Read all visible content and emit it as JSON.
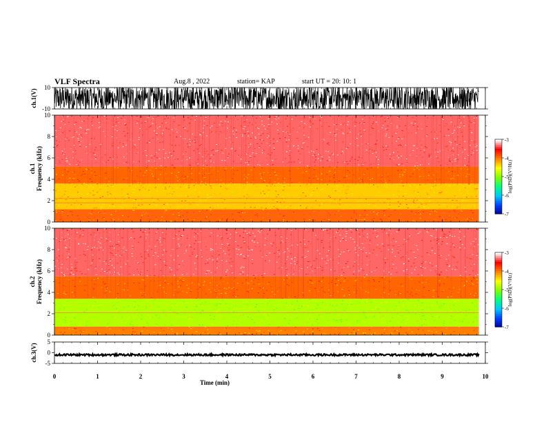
{
  "header": {
    "title": "VLF Spectra",
    "date": "Aug.8 , 2022",
    "station": "station= KAP",
    "start_ut": "start UT = 20: 10: 1"
  },
  "chart_data": [
    {
      "type": "line",
      "panel": "waveform-ch1",
      "ylabel": "ch.1(V)",
      "ylim": [
        -10,
        10
      ],
      "yticks": [
        "10",
        "-10"
      ],
      "xlim": [
        0,
        10
      ],
      "description_values": "dense oscillating waveform, amplitude saturating near ±10 V"
    },
    {
      "type": "heatmap",
      "panel": "spectrogram-ch1",
      "ylabel": "ch.1\nFrequency (kHz)",
      "ylabel_lines": [
        "ch.1",
        "Frequency (kHz)"
      ],
      "ylim": [
        0,
        10
      ],
      "yticks": [
        "0",
        "2",
        "4",
        "6",
        "8",
        "10"
      ],
      "xlim": [
        0,
        10
      ],
      "colorbar": {
        "label": "log(PSD)(V²/Hz)",
        "range": [
          -7,
          -3
        ],
        "ticks": [
          "-3",
          "-4",
          "-5",
          "-6",
          "-7"
        ]
      },
      "bands": [
        {
          "from_khz": 0,
          "to_khz": 1.2,
          "level": -3.9
        },
        {
          "from_khz": 1.2,
          "to_khz": 3.6,
          "level": -4.3
        },
        {
          "from_khz": 3.6,
          "to_khz": 5.2,
          "level": -3.9
        },
        {
          "from_khz": 5.2,
          "to_khz": 10,
          "level": -3.3
        }
      ],
      "lines_khz": [
        5.5,
        2.2,
        1.8,
        0.8,
        0.4
      ]
    },
    {
      "type": "heatmap",
      "panel": "spectrogram-ch2",
      "ylabel": "ch.2\nFrequency (kHz)",
      "ylabel_lines": [
        "ch.2",
        "Frequency (kHz)"
      ],
      "ylim": [
        0,
        10
      ],
      "yticks": [
        "0",
        "2",
        "4",
        "6",
        "8",
        "10"
      ],
      "xlim": [
        0,
        10
      ],
      "colorbar": {
        "label": "log(PSD)(V²/Hz)",
        "range": [
          -7,
          -3
        ],
        "ticks": [
          "-3",
          "-4",
          "-5",
          "-6",
          "-7"
        ]
      },
      "bands": [
        {
          "from_khz": 0,
          "to_khz": 0.8,
          "level": -4.0
        },
        {
          "from_khz": 0.8,
          "to_khz": 3.4,
          "level": -4.8
        },
        {
          "from_khz": 3.4,
          "to_khz": 5.5,
          "level": -3.9
        },
        {
          "from_khz": 5.5,
          "to_khz": 10,
          "level": -3.3
        }
      ],
      "lines_khz": [
        2.1,
        0.7
      ]
    },
    {
      "type": "line",
      "panel": "waveform-ch3",
      "ylabel": "ch.3(V)",
      "ylim": [
        -5,
        5
      ],
      "yticks": [
        "5",
        "0",
        "-5"
      ],
      "xlim": [
        0,
        10
      ],
      "description_values": "nearly constant signal around -1 V"
    }
  ],
  "x_axis": {
    "label": "Time (min)",
    "ticks": [
      "0",
      "1",
      "2",
      "3",
      "4",
      "5",
      "6",
      "7",
      "8",
      "9",
      "10"
    ]
  },
  "colors": {
    "colormap": [
      "#000090",
      "#0040ff",
      "#00c8ff",
      "#00ff80",
      "#80ff00",
      "#ffff00",
      "#ff8000",
      "#ff0000",
      "#ffffff"
    ]
  }
}
